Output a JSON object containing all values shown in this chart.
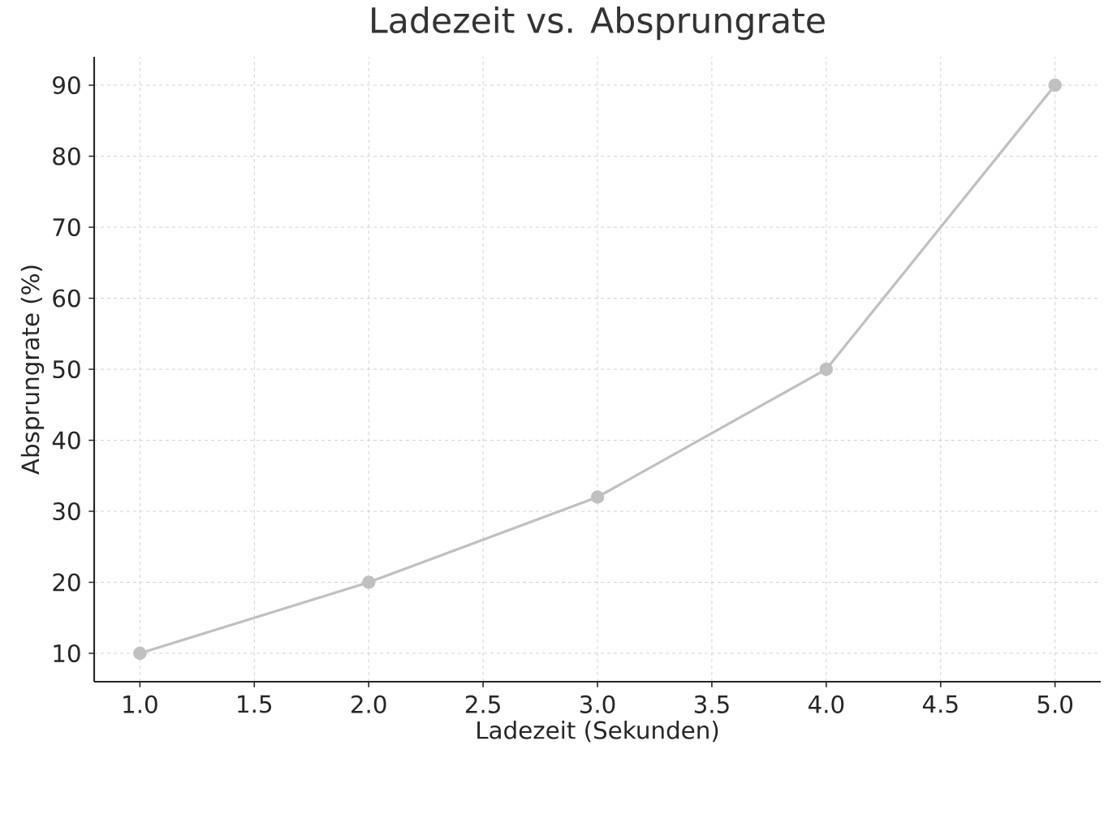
{
  "chart_data": {
    "type": "line",
    "title": "Ladezeit vs. Absprungrate",
    "xlabel": "Ladezeit (Sekunden)",
    "ylabel": "Absprungrate (%)",
    "x": [
      1,
      2,
      3,
      4,
      5
    ],
    "series": [
      {
        "color": "#c0c0c0",
        "values": [
          10,
          20,
          32,
          50,
          90
        ]
      }
    ],
    "xlim": [
      0.8,
      5.2
    ],
    "ylim": [
      6,
      94
    ],
    "xticks": [
      {
        "value": 1,
        "label": "1.0"
      },
      {
        "value": 1.5,
        "label": "1.5"
      },
      {
        "value": 2,
        "label": "2.0"
      },
      {
        "value": 2.5,
        "label": "2.5"
      },
      {
        "value": 3,
        "label": "3.0"
      },
      {
        "value": 3.5,
        "label": "3.5"
      },
      {
        "value": 4,
        "label": "4.0"
      },
      {
        "value": 4.5,
        "label": "4.5"
      },
      {
        "value": 5,
        "label": "5.0"
      }
    ],
    "yticks": [
      10,
      20,
      30,
      40,
      50,
      60,
      70,
      80,
      90
    ],
    "grid": true,
    "marker": "circle",
    "line_style": "solid"
  }
}
